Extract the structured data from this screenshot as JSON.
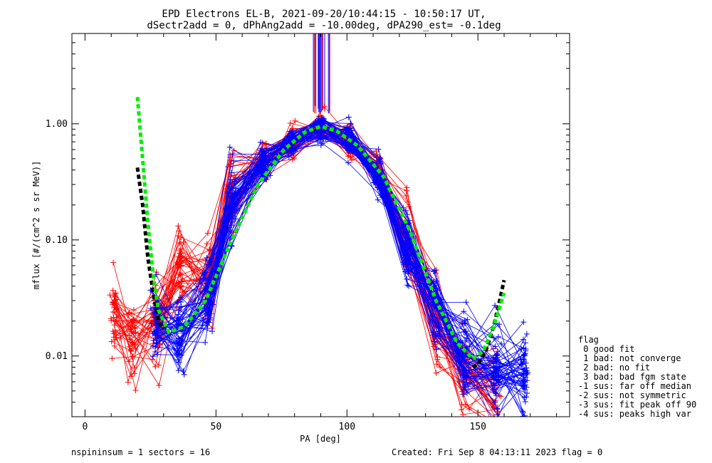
{
  "title_line1": "EPD Electrons EL-B, 2021-09-20/10:44:15 - 10:50:17 UT,",
  "title_line2": "dSectr2add = 0, dPhAng2add = -10.00deg, dPA290_est=  -0.1deg",
  "footer": {
    "left": "nspininsum =  1  sectors = 16",
    "right": "Created: Fri Sep  8 04:13:11 2023   flag = 0"
  },
  "legend": {
    "title": "flag",
    "items": [
      " 0 good fit",
      " 1 bad: not converge",
      " 2 bad: no fit",
      " 3 bad: bad fgm state",
      "-1 sus: far off median",
      "-2 sus: not symmetric",
      "-3 sus: fit peak off 90",
      "-4 sus: peaks high var"
    ]
  },
  "colors": {
    "red": "#ff0000",
    "blue": "#0000ff",
    "fit_green": "#00ee00",
    "fit_black": "#000000"
  },
  "chart_data": {
    "type": "line",
    "xlabel": "PA [deg]",
    "ylabel": "mflux [#/(cm^2 s sr MeV)]",
    "xlim": [
      -5,
      185
    ],
    "ylim_log": [
      0.003,
      6
    ],
    "yscale": "log",
    "xticks": [
      0,
      50,
      100,
      150
    ],
    "xtick_labels": [
      "0",
      "50",
      "100",
      "150"
    ],
    "yticks": [
      0.01,
      0.1,
      1.0
    ],
    "ytick_labels": [
      "0.01",
      "0.10",
      "1.00"
    ],
    "series_red": {
      "x": [
        11,
        18,
        27,
        36,
        47,
        56,
        68,
        79,
        90,
        101,
        112,
        123,
        134,
        145,
        157
      ],
      "y": [
        0.021,
        0.013,
        0.02,
        0.06,
        0.045,
        0.25,
        0.5,
        0.7,
        0.95,
        0.7,
        0.4,
        0.1,
        0.02,
        0.008,
        0.005
      ],
      "tail_x": [
        15,
        20,
        25,
        30
      ],
      "tail_y": [
        0.012,
        0.009,
        0.007,
        0.006
      ]
    },
    "series_blue": {
      "x": [
        27,
        36,
        47,
        56,
        68,
        79,
        90,
        101,
        112,
        123,
        134,
        145,
        157,
        168
      ],
      "y": [
        0.018,
        0.016,
        0.03,
        0.2,
        0.45,
        0.7,
        0.92,
        0.72,
        0.36,
        0.09,
        0.025,
        0.01,
        0.008,
        0.007
      ]
    },
    "fit_green": {
      "x": [
        20,
        22,
        24,
        26,
        28,
        32,
        38,
        46,
        56,
        66,
        76,
        84,
        90,
        96,
        104,
        114,
        124,
        134,
        142,
        148,
        152,
        156,
        160
      ],
      "y": [
        1.7,
        0.5,
        0.14,
        0.05,
        0.025,
        0.016,
        0.018,
        0.03,
        0.1,
        0.3,
        0.6,
        0.85,
        0.95,
        0.87,
        0.65,
        0.35,
        0.12,
        0.03,
        0.013,
        0.0095,
        0.011,
        0.018,
        0.035
      ]
    },
    "fit_black": {
      "x": [
        20,
        22,
        24,
        26,
        28,
        30,
        148,
        150,
        153,
        156,
        158,
        160
      ],
      "y": [
        0.42,
        0.2,
        0.07,
        0.035,
        0.02,
        0.017,
        0.008,
        0.0085,
        0.011,
        0.018,
        0.028,
        0.045
      ]
    }
  }
}
